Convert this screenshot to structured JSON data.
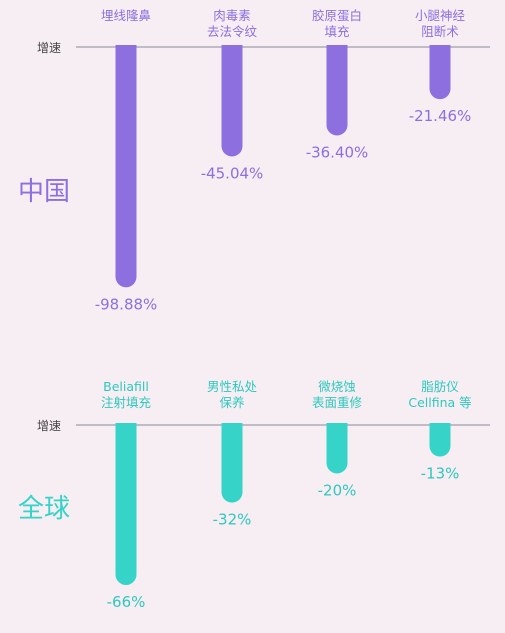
{
  "chart_data": [
    {
      "type": "bar",
      "region_label": "中国",
      "axis_label": "增速",
      "categories": [
        "埋线隆鼻",
        "肉毒素去法令纹",
        "胶原蛋白填充",
        "小腿神经阻断术"
      ],
      "category_lines": [
        [
          "埋线隆鼻"
        ],
        [
          "肉毒素",
          "去法令纹"
        ],
        [
          "胶原蛋白",
          "填充"
        ],
        [
          "小腿神经",
          "阻断术"
        ]
      ],
      "values": [
        -98.88,
        -45.04,
        -36.4,
        -21.46
      ],
      "value_labels": [
        "-98.88%",
        "-45.04%",
        "-36.40%",
        "-21.46%"
      ],
      "ylim": [
        -100,
        0
      ],
      "color": "#8d6fe0",
      "label_color": "#8d6fe0",
      "region_color": "#8d6fe0"
    },
    {
      "type": "bar",
      "region_label": "全球",
      "axis_label": "增速",
      "categories": [
        "Beliafill注射填充",
        "男性私处保养",
        "微烧蚀表面重修",
        "脂肪仪Cellfina 等"
      ],
      "category_lines": [
        [
          "Beliafill",
          "注射填充"
        ],
        [
          "男性私处",
          "保养"
        ],
        [
          "微烧蚀",
          "表面重修"
        ],
        [
          "脂肪仪",
          "Cellfina 等"
        ]
      ],
      "values": [
        -66,
        -32,
        -20,
        -13
      ],
      "value_labels": [
        "-66%",
        "-32%",
        "-20%",
        "-13%"
      ],
      "ylim": [
        -66,
        0
      ],
      "color": "#35d3c8",
      "label_color": "#2ec8bd",
      "region_color": "#35d3c8"
    }
  ]
}
